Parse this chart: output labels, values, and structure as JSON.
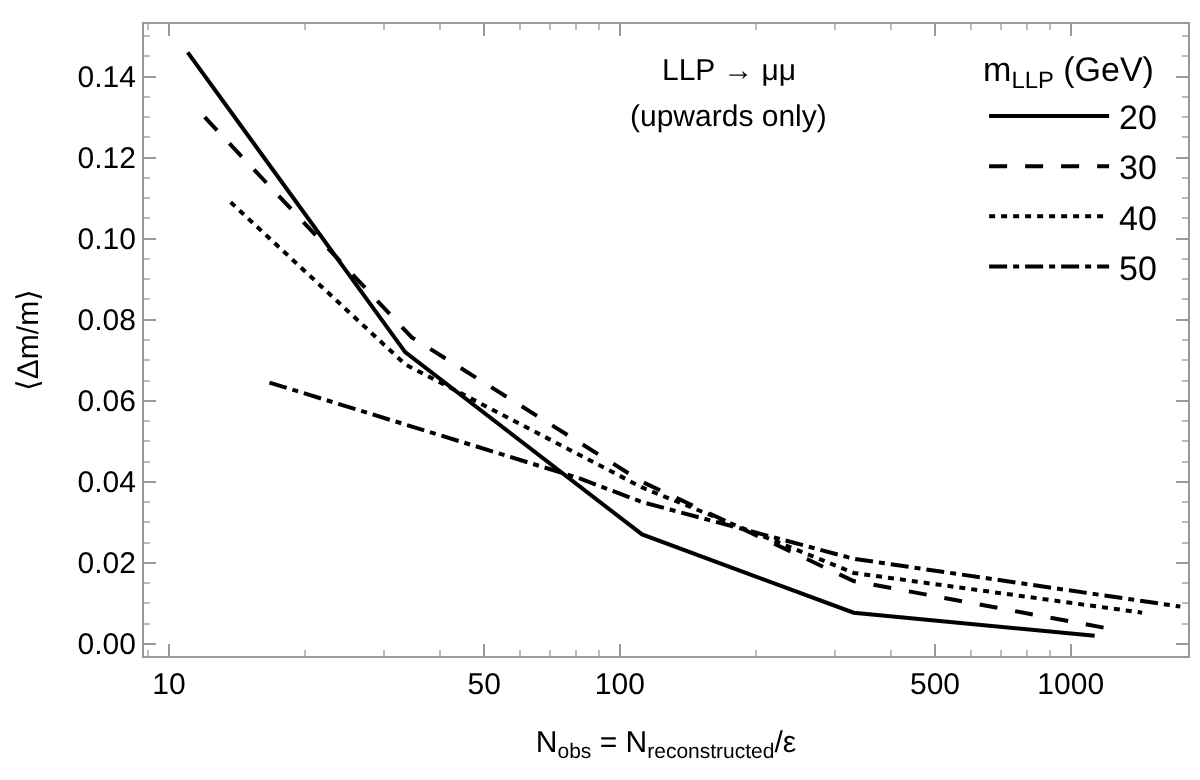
{
  "chart_data": {
    "type": "line",
    "xlabel": "N$_{obs}$ = N$_{reconstructed}$/ε",
    "ylabel": "⟨Δm/m⟩",
    "legend_title": "m$_{LLP}$ (GeV)",
    "log": "x",
    "legend": "top right",
    "marker": "none",
    "xlim": [
      8.8,
      1820
    ],
    "xticks": [
      10,
      50,
      100,
      500,
      1000
    ],
    "ylim": [
      -0.003,
      0.153
    ],
    "yticks": [
      {
        "value": 0,
        "label": "0.00"
      },
      {
        "value": 0.02,
        "label": "0.02"
      },
      {
        "value": 0.04,
        "label": "0.04"
      },
      {
        "value": 0.06,
        "label": "0.06"
      },
      {
        "value": 0.08,
        "label": "0.08"
      },
      {
        "value": 0.1,
        "label": "0.10"
      },
      {
        "value": 0.12,
        "label": "0.12"
      },
      {
        "value": 0.14,
        "label": "0.14"
      }
    ],
    "annotations": [
      "LLP → μμ",
      "(upwards only)"
    ],
    "series": [
      {
        "name": "20",
        "color": "#000000",
        "line_style": "solid",
        "x": [
          11.0,
          33.4,
          112,
          330,
          1130
        ],
        "values": [
          0.146,
          0.072,
          0.027,
          0.0077,
          0.002
        ]
      },
      {
        "name": "30",
        "color": "#000000",
        "line_style": "dashed",
        "x": [
          12.0,
          34.5,
          112,
          330,
          1210
        ],
        "values": [
          0.13,
          0.0757,
          0.04,
          0.0155,
          0.0038
        ]
      },
      {
        "name": "40",
        "color": "#000000",
        "line_style": "dotted",
        "x": [
          13.7,
          33.4,
          112,
          330,
          1440
        ],
        "values": [
          0.109,
          0.069,
          0.0386,
          0.0175,
          0.0077
        ]
      },
      {
        "name": "50",
        "color": "#000000",
        "line_style": "dashdot",
        "x": [
          16.7,
          80.6,
          112,
          330,
          1750
        ],
        "values": [
          0.0645,
          0.041,
          0.035,
          0.021,
          0.0092
        ]
      }
    ]
  }
}
